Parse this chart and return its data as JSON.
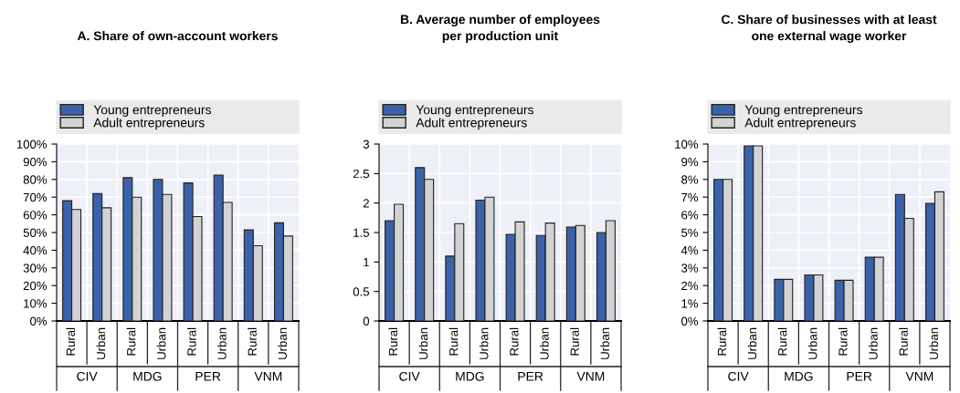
{
  "chart_data": [
    {
      "type": "bar",
      "title": "A. Share of own-account workers",
      "categories": [
        "Rural",
        "Urban",
        "Rural",
        "Urban",
        "Rural",
        "Urban",
        "Rural",
        "Urban"
      ],
      "annotations": [
        "CIV",
        "MDG",
        "PER",
        "VNM"
      ],
      "legend": "top",
      "grid": true,
      "ylim": [
        0,
        100
      ],
      "yticks": [
        {
          "value": 0,
          "label": "0%"
        },
        {
          "value": 10,
          "label": "10%"
        },
        {
          "value": 20,
          "label": "20%"
        },
        {
          "value": 30,
          "label": "30%"
        },
        {
          "value": 40,
          "label": "40%"
        },
        {
          "value": 50,
          "label": "50%"
        },
        {
          "value": 60,
          "label": "60%"
        },
        {
          "value": 70,
          "label": "70%"
        },
        {
          "value": 80,
          "label": "80%"
        },
        {
          "value": 90,
          "label": "90%"
        },
        {
          "value": 100,
          "label": "100%"
        }
      ],
      "series": [
        {
          "name": "Young entrepreneurs",
          "color": "#3a62aa",
          "values": [
            68,
            72,
            81,
            80,
            78,
            82.5,
            51.5,
            55.5
          ]
        },
        {
          "name": "Adult entrepreneurs",
          "color": "#d3d3d3",
          "values": [
            63,
            64,
            70,
            71.5,
            59,
            67,
            42.5,
            48
          ]
        }
      ]
    },
    {
      "type": "bar",
      "title": "B. Average number of employees\nper production unit",
      "categories": [
        "Rural",
        "Urban",
        "Rural",
        "Urban",
        "Rural",
        "Urban",
        "Rural",
        "Urban"
      ],
      "annotations": [
        "CIV",
        "MDG",
        "PER",
        "VNM"
      ],
      "legend": "top",
      "grid": true,
      "ylim": [
        0,
        3
      ],
      "yticks": [
        0,
        {
          "value": 0.5,
          "label": "0.5"
        },
        1,
        {
          "value": 1.5,
          "label": "1.5"
        },
        2,
        {
          "value": 2.5,
          "label": "2.5"
        },
        3
      ],
      "series": [
        {
          "name": "Young entrepreneurs",
          "color": "#3a62aa",
          "values": [
            1.7,
            2.6,
            1.1,
            2.05,
            1.47,
            1.45,
            1.59,
            1.5
          ]
        },
        {
          "name": "Adult entrepreneurs",
          "color": "#d3d3d3",
          "values": [
            1.98,
            2.4,
            1.65,
            2.1,
            1.68,
            1.66,
            1.62,
            1.7
          ]
        }
      ]
    },
    {
      "type": "bar",
      "title": "C. Share of businesses with at least\none external wage worker",
      "categories": [
        "Rural",
        "Urban",
        "Rural",
        "Urban",
        "Rural",
        "Urban",
        "Rural",
        "Urban"
      ],
      "annotations": [
        "CIV",
        "MDG",
        "PER",
        "VNM"
      ],
      "legend": "top",
      "grid": true,
      "ylim": [
        0,
        10
      ],
      "yticks": [
        {
          "value": 0,
          "label": "0%"
        },
        {
          "value": 1,
          "label": "1%"
        },
        {
          "value": 2,
          "label": "2%"
        },
        {
          "value": 3,
          "label": "3%"
        },
        {
          "value": 4,
          "label": "4%"
        },
        {
          "value": 5,
          "label": "5%"
        },
        {
          "value": 6,
          "label": "6%"
        },
        {
          "value": 7,
          "label": "7%"
        },
        {
          "value": 8,
          "label": "8%"
        },
        {
          "value": 9,
          "label": "9%"
        },
        {
          "value": 10,
          "label": "10%"
        }
      ],
      "series": [
        {
          "name": "Young entrepreneurs",
          "color": "#3a62aa",
          "values": [
            8.0,
            9.9,
            2.35,
            2.6,
            2.3,
            3.6,
            7.15,
            6.65
          ]
        },
        {
          "name": "Adult entrepreneurs",
          "color": "#d3d3d3",
          "values": [
            8.0,
            9.9,
            2.35,
            2.6,
            2.3,
            3.6,
            5.8,
            7.3
          ]
        }
      ]
    }
  ]
}
